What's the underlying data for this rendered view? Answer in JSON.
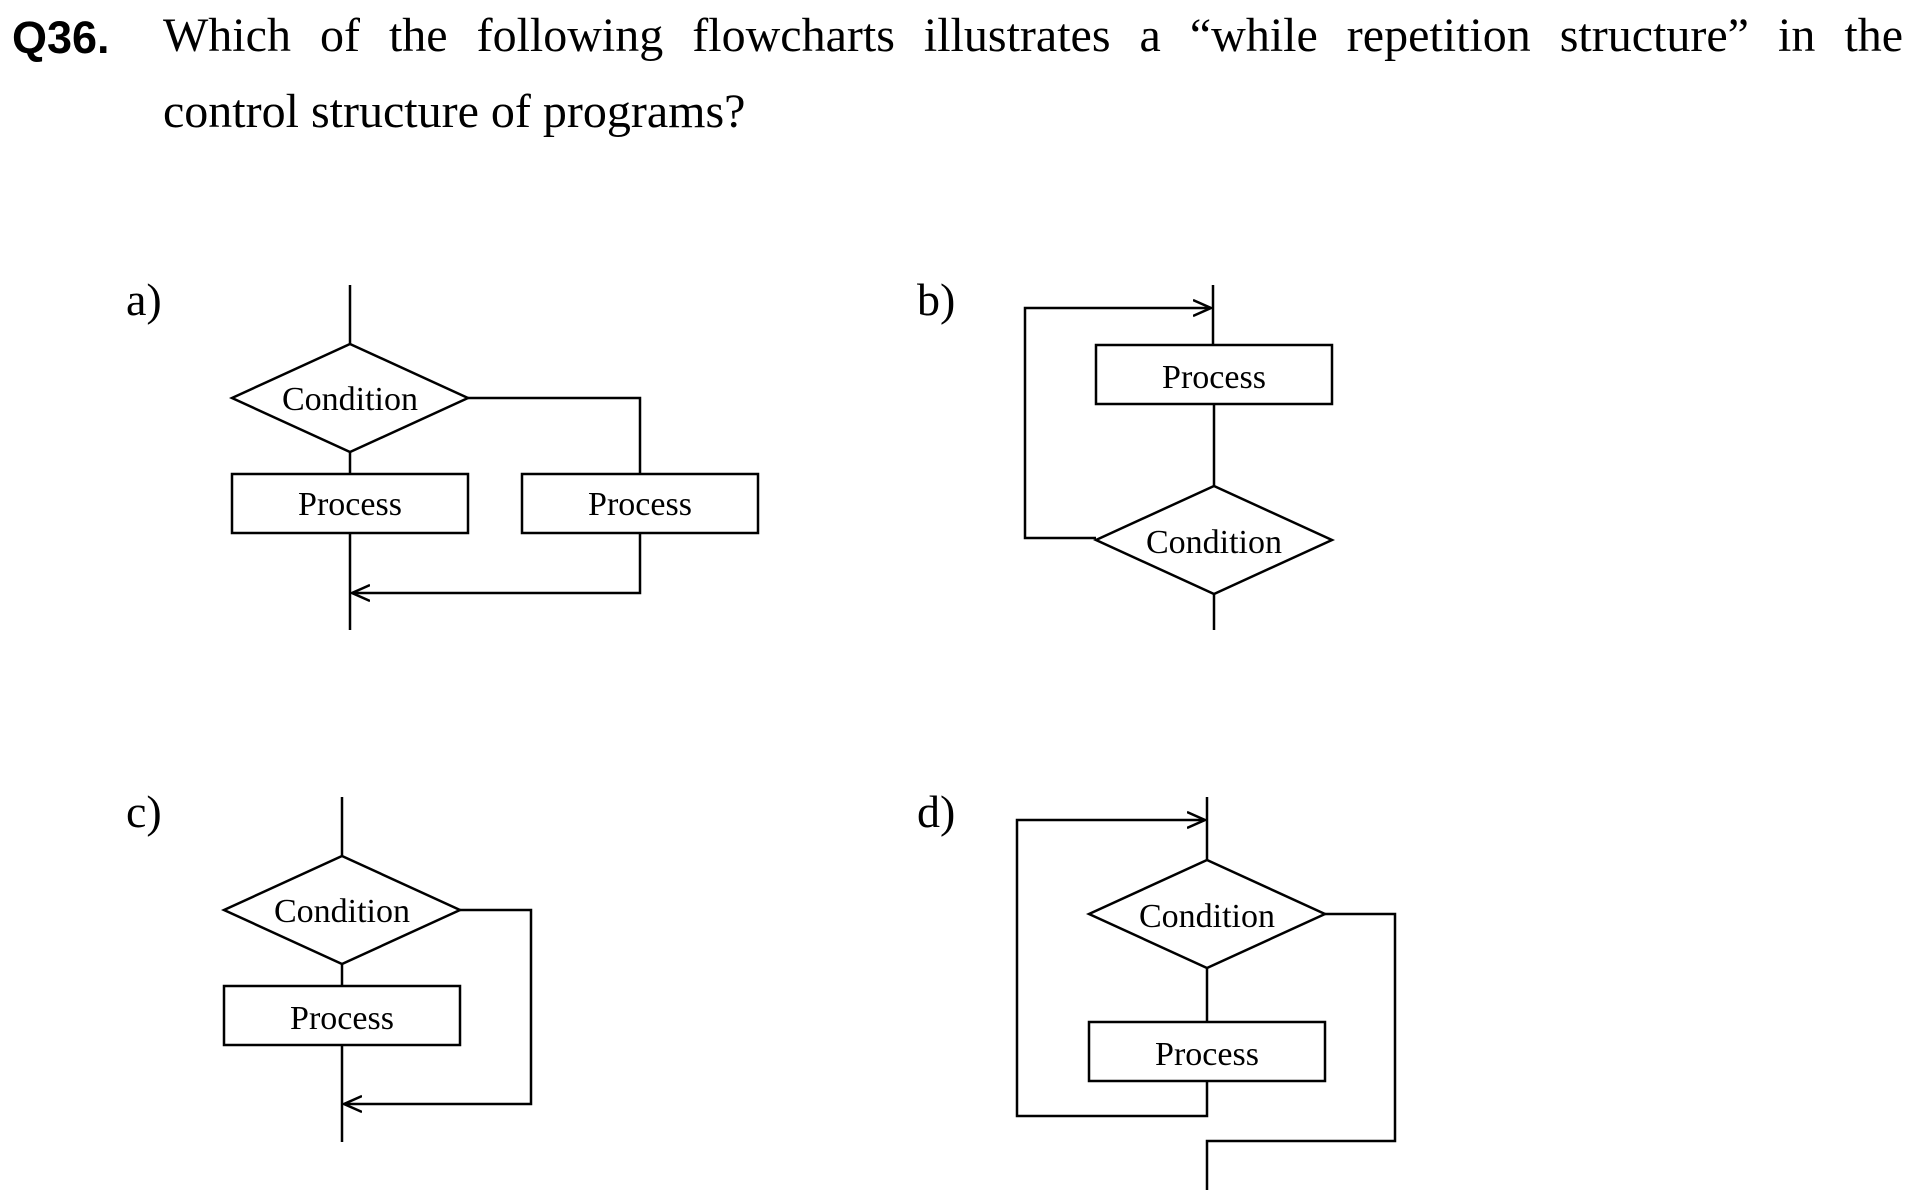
{
  "question": {
    "number": "Q36.",
    "line1": "Which of the following flowcharts illustrates a “while repetition structure” in the",
    "line2": "control structure of programs?"
  },
  "options": {
    "a": {
      "label": "a)",
      "condition": "Condition",
      "process_left": "Process",
      "process_right": "Process"
    },
    "b": {
      "label": "b)",
      "process": "Process",
      "condition": "Condition"
    },
    "c": {
      "label": "c)",
      "condition": "Condition",
      "process": "Process"
    },
    "d": {
      "label": "d)",
      "condition": "Condition",
      "process": "Process"
    }
  }
}
